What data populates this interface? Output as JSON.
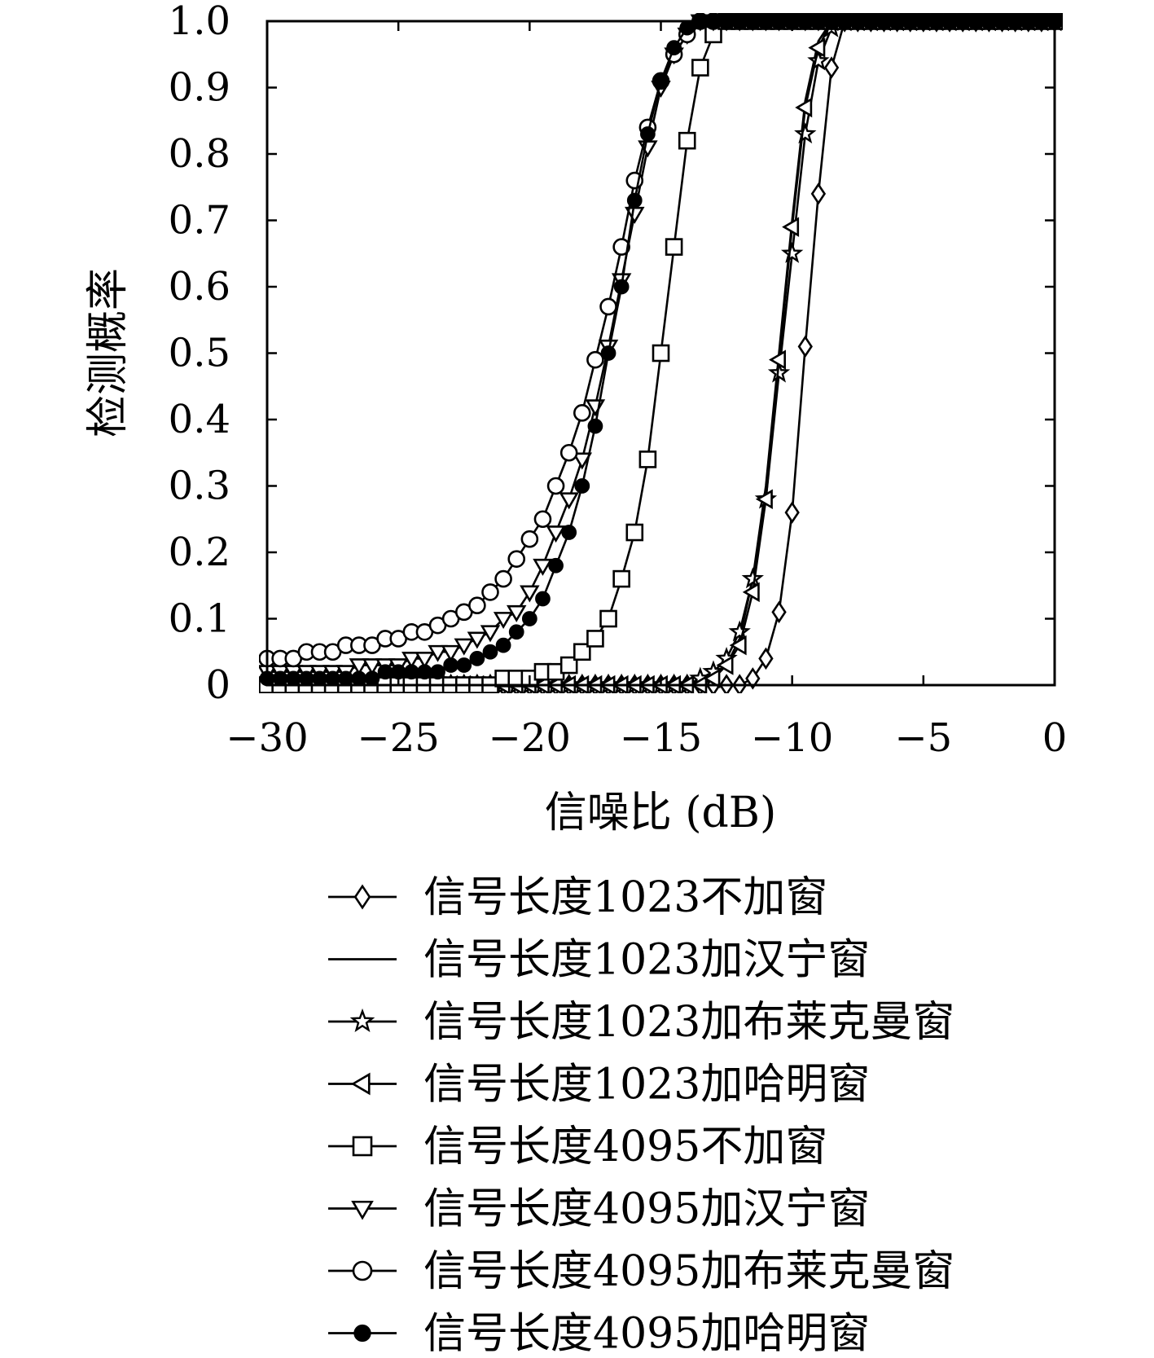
{
  "chart_data": {
    "type": "line",
    "xlabel": "信噪比 (dB)",
    "ylabel": "检测概率",
    "xlim": [
      -30,
      0
    ],
    "ylim": [
      0,
      1.0
    ],
    "xticks": [
      "−30",
      "−25",
      "−20",
      "−15",
      "−10",
      "−5",
      "0"
    ],
    "xtick_values": [
      -30,
      -25,
      -20,
      -15,
      -10,
      -5,
      0
    ],
    "yticks": [
      "0",
      "0.1",
      "0.2",
      "0.3",
      "0.4",
      "0.5",
      "0.6",
      "0.7",
      "0.8",
      "0.9",
      "1.0"
    ],
    "ytick_values": [
      0,
      0.1,
      0.2,
      0.3,
      0.4,
      0.5,
      0.6,
      0.7,
      0.8,
      0.9,
      1.0
    ],
    "grid": false,
    "legend_position": "below",
    "x": [
      -30,
      -29.5,
      -29,
      -28.5,
      -28,
      -27.5,
      -27,
      -26.5,
      -26,
      -25.5,
      -25,
      -24.5,
      -24,
      -23.5,
      -23,
      -22.5,
      -22,
      -21.5,
      -21,
      -20.5,
      -20,
      -19.5,
      -19,
      -18.5,
      -18,
      -17.5,
      -17,
      -16.5,
      -16,
      -15.5,
      -15,
      -14.5,
      -14,
      -13.5,
      -13,
      -12.5,
      -12,
      -11.5,
      -11,
      -10.5,
      -10,
      -9.5,
      -9,
      -8.5,
      -8,
      -7.5,
      -7,
      -6.5,
      -6,
      -5.5,
      -5,
      -4.5,
      -4,
      -3.5,
      -3,
      -2.5,
      -2,
      -1.5,
      -1,
      -0.5,
      0
    ],
    "series": [
      {
        "name": "信号长度1023不加窗",
        "marker": "diamond",
        "values": [
          0,
          0,
          0,
          0,
          0,
          0,
          0,
          0,
          0,
          0,
          0,
          0,
          0,
          0,
          0,
          0,
          0,
          0,
          0,
          0,
          0,
          0,
          0,
          0,
          0,
          0,
          0,
          0,
          0,
          0,
          0,
          0,
          0,
          0,
          0,
          0,
          0,
          0.01,
          0.04,
          0.11,
          0.26,
          0.51,
          0.74,
          0.93,
          1,
          1,
          1,
          1,
          1,
          1,
          1,
          1,
          1,
          1,
          1,
          1,
          1,
          1,
          1,
          1,
          1
        ]
      },
      {
        "name": "信号长度1023加汉宁窗",
        "marker": "none",
        "values": [
          0,
          0,
          0,
          0,
          0,
          0,
          0,
          0,
          0,
          0,
          0,
          0,
          0,
          0,
          0,
          0,
          0,
          0,
          0,
          0,
          0,
          0,
          0,
          0,
          0,
          0,
          0,
          0,
          0,
          0,
          0,
          0,
          0,
          0.01,
          0.01,
          0.03,
          0.07,
          0.16,
          0.3,
          0.5,
          0.7,
          0.88,
          0.97,
          1,
          1,
          1,
          1,
          1,
          1,
          1,
          1,
          1,
          1,
          1,
          1,
          1,
          1,
          1,
          1,
          1,
          1
        ]
      },
      {
        "name": "信号长度1023加布莱克曼窗",
        "marker": "star",
        "values": [
          0,
          0,
          0,
          0,
          0,
          0,
          0,
          0,
          0,
          0,
          0,
          0,
          0,
          0,
          0,
          0,
          0,
          0,
          0,
          0,
          0,
          0,
          0,
          0,
          0,
          0,
          0,
          0,
          0,
          0,
          0,
          0,
          0,
          0.01,
          0.02,
          0.04,
          0.08,
          0.16,
          0.28,
          0.47,
          0.65,
          0.83,
          0.94,
          0.99,
          1,
          1,
          1,
          1,
          1,
          1,
          1,
          1,
          1,
          1,
          1,
          1,
          1,
          1,
          1,
          1,
          1
        ]
      },
      {
        "name": "信号长度1023加哈明窗",
        "marker": "triangle-left",
        "values": [
          0,
          0,
          0,
          0,
          0,
          0,
          0,
          0,
          0,
          0,
          0,
          0,
          0,
          0,
          0,
          0,
          0,
          0,
          0,
          0,
          0,
          0,
          0,
          0,
          0,
          0,
          0,
          0,
          0,
          0,
          0,
          0,
          0,
          0,
          0.01,
          0.03,
          0.06,
          0.14,
          0.28,
          0.49,
          0.69,
          0.87,
          0.96,
          1,
          1,
          1,
          1,
          1,
          1,
          1,
          1,
          1,
          1,
          1,
          1,
          1,
          1,
          1,
          1,
          1,
          1
        ]
      },
      {
        "name": "信号长度4095不加窗",
        "marker": "square",
        "values": [
          0,
          0,
          0,
          0,
          0,
          0,
          0,
          0,
          0,
          0,
          0,
          0,
          0,
          0,
          0,
          0,
          0,
          0,
          0.01,
          0.01,
          0.01,
          0.02,
          0.02,
          0.03,
          0.05,
          0.07,
          0.1,
          0.16,
          0.23,
          0.34,
          0.5,
          0.66,
          0.82,
          0.93,
          0.98,
          1,
          1,
          1,
          1,
          1,
          1,
          1,
          1,
          1,
          1,
          1,
          1,
          1,
          1,
          1,
          1,
          1,
          1,
          1,
          1,
          1,
          1,
          1,
          1,
          1,
          1
        ]
      },
      {
        "name": "信号长度4095加汉宁窗",
        "marker": "triangle-down",
        "values": [
          0.02,
          0.02,
          0.02,
          0.02,
          0.02,
          0.02,
          0.02,
          0.03,
          0.03,
          0.03,
          0.03,
          0.04,
          0.04,
          0.05,
          0.05,
          0.06,
          0.07,
          0.08,
          0.1,
          0.11,
          0.14,
          0.18,
          0.23,
          0.28,
          0.34,
          0.42,
          0.51,
          0.61,
          0.71,
          0.81,
          0.9,
          0.95,
          0.98,
          1,
          1,
          1,
          1,
          1,
          1,
          1,
          1,
          1,
          1,
          1,
          1,
          1,
          1,
          1,
          1,
          1,
          1,
          1,
          1,
          1,
          1,
          1,
          1,
          1,
          1,
          1,
          1
        ]
      },
      {
        "name": "信号长度4095加布莱克曼窗",
        "marker": "circle",
        "values": [
          0.04,
          0.04,
          0.04,
          0.05,
          0.05,
          0.05,
          0.06,
          0.06,
          0.06,
          0.07,
          0.07,
          0.08,
          0.08,
          0.09,
          0.1,
          0.11,
          0.12,
          0.14,
          0.16,
          0.19,
          0.22,
          0.25,
          0.3,
          0.35,
          0.41,
          0.49,
          0.57,
          0.66,
          0.76,
          0.84,
          0.91,
          0.95,
          0.98,
          1,
          1,
          1,
          1,
          1,
          1,
          1,
          1,
          1,
          1,
          1,
          1,
          1,
          1,
          1,
          1,
          1,
          1,
          1,
          1,
          1,
          1,
          1,
          1,
          1,
          1,
          1,
          1
        ]
      },
      {
        "name": "信号长度4095加哈明窗",
        "marker": "filled-circle",
        "values": [
          0.01,
          0.01,
          0.01,
          0.01,
          0.01,
          0.01,
          0.01,
          0.01,
          0.01,
          0.02,
          0.02,
          0.02,
          0.02,
          0.02,
          0.03,
          0.03,
          0.04,
          0.05,
          0.06,
          0.08,
          0.1,
          0.13,
          0.18,
          0.23,
          0.3,
          0.39,
          0.5,
          0.6,
          0.73,
          0.83,
          0.91,
          0.96,
          0.99,
          1,
          1,
          1,
          1,
          1,
          1,
          1,
          1,
          1,
          1,
          1,
          1,
          1,
          1,
          1,
          1,
          1,
          1,
          1,
          1,
          1,
          1,
          1,
          1,
          1,
          1,
          1,
          1
        ]
      }
    ]
  }
}
